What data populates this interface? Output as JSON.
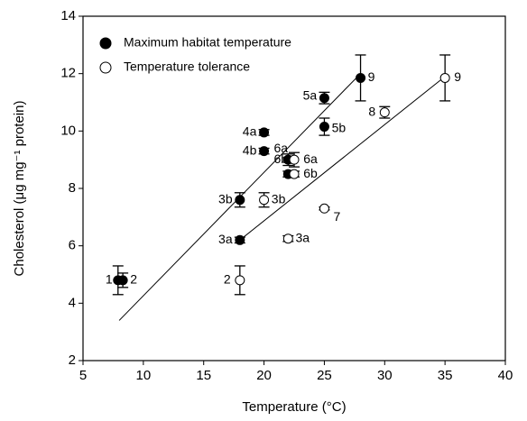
{
  "chart_data": {
    "type": "scatter",
    "xlabel": "Temperature (°C)",
    "ylabel": "Cholesterol (μg mg⁻¹ protein)",
    "xlim": [
      5,
      40
    ],
    "xticks": [
      5,
      10,
      15,
      20,
      25,
      30,
      35,
      40
    ],
    "ylim": [
      2,
      14
    ],
    "yticks": [
      2,
      4,
      6,
      8,
      10,
      12,
      14
    ],
    "legend": "upper left",
    "series": [
      {
        "name": "Maximum habitat temperature",
        "marker": "filled",
        "color": "#000000",
        "x": [
          7.9,
          8.3,
          18,
          18,
          20,
          20,
          25,
          25,
          22,
          22,
          28
        ],
        "values": [
          4.8,
          4.8,
          6.2,
          7.6,
          9.95,
          9.3,
          11.15,
          10.15,
          9.0,
          8.5,
          11.85
        ],
        "errors": [
          0.5,
          0.25,
          0.1,
          0.25,
          0.1,
          0.1,
          0.2,
          0.3,
          0.2,
          0.1,
          0.8
        ],
        "labels": [
          "1",
          "2",
          "3a",
          "3b",
          "4a",
          "4b",
          "5a",
          "5b",
          "6a",
          "6b",
          "9"
        ],
        "fit": {
          "x": [
            8,
            28
          ],
          "y": [
            3.4,
            12.0
          ]
        }
      },
      {
        "name": "Temperature tolerance",
        "marker": "open",
        "color": "#000000",
        "x": [
          18,
          22,
          20,
          22.5,
          22.5,
          25,
          30,
          35
        ],
        "values": [
          4.8,
          6.25,
          7.6,
          9.0,
          8.5,
          7.3,
          10.65,
          11.85
        ],
        "errors": [
          0.5,
          0.1,
          0.25,
          0.25,
          0.1,
          0.05,
          0.2,
          0.8
        ],
        "labels": [
          "2",
          "3a",
          "3b",
          "6a",
          "6b",
          "7",
          "8",
          "9"
        ],
        "fit": {
          "x": [
            18,
            35
          ],
          "y": [
            6.2,
            11.9
          ]
        }
      }
    ]
  }
}
